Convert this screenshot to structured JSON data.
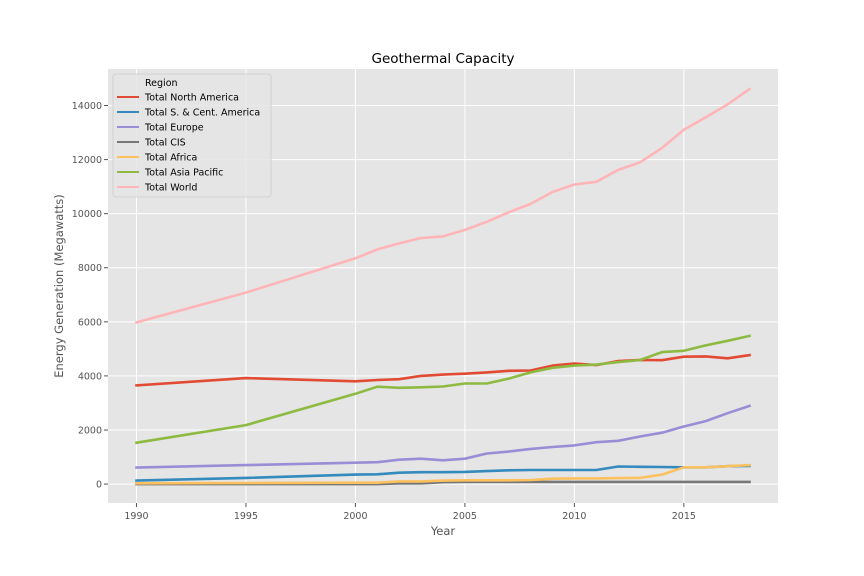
{
  "chart_data": {
    "type": "line",
    "title": "Geothermal Capacity",
    "xlabel": "Year",
    "ylabel": "Energy Generation (Megawatts)",
    "xlim": [
      1988.7,
      2019.3
    ],
    "ylim": [
      -700,
      15350
    ],
    "x_ticks": [
      1990,
      1995,
      2000,
      2005,
      2010,
      2015
    ],
    "y_ticks": [
      0,
      2000,
      4000,
      6000,
      8000,
      10000,
      12000,
      14000
    ],
    "grid": true,
    "legend": {
      "title": "Region",
      "placement": "top-left"
    },
    "x": [
      1990,
      1995,
      2000,
      2001,
      2002,
      2003,
      2004,
      2005,
      2006,
      2007,
      2008,
      2009,
      2010,
      2011,
      2012,
      2013,
      2014,
      2015,
      2016,
      2017,
      2018
    ],
    "series": [
      {
        "name": "Total North America",
        "color": "#E24A33",
        "values": [
          3650,
          3920,
          3800,
          3850,
          3880,
          4000,
          4050,
          4080,
          4130,
          4190,
          4200,
          4380,
          4460,
          4400,
          4550,
          4590,
          4580,
          4710,
          4720,
          4650,
          4770
        ]
      },
      {
        "name": "Total S. & Cent. America",
        "color": "#348ABD",
        "values": [
          130,
          230,
          350,
          360,
          420,
          440,
          440,
          450,
          480,
          510,
          520,
          520,
          520,
          520,
          650,
          640,
          630,
          620,
          620,
          660,
          670
        ]
      },
      {
        "name": "Total Europe",
        "color": "#988ED5",
        "values": [
          610,
          700,
          790,
          810,
          900,
          940,
          880,
          940,
          1130,
          1200,
          1300,
          1370,
          1430,
          1550,
          1600,
          1760,
          1900,
          2130,
          2330,
          2620,
          2890
        ]
      },
      {
        "name": "Total CIS",
        "color": "#777777",
        "values": [
          0,
          0,
          0,
          0,
          30,
          30,
          70,
          80,
          80,
          80,
          80,
          80,
          80,
          80,
          80,
          80,
          80,
          80,
          80,
          80,
          80
        ]
      },
      {
        "name": "Total Africa",
        "color": "#FBC15E",
        "values": [
          30,
          40,
          50,
          50,
          100,
          100,
          130,
          140,
          140,
          140,
          150,
          200,
          210,
          210,
          220,
          230,
          350,
          620,
          620,
          660,
          700
        ]
      },
      {
        "name": "Total Asia Pacific",
        "color": "#8EBA42",
        "values": [
          1530,
          2180,
          3340,
          3600,
          3560,
          3580,
          3610,
          3720,
          3720,
          3900,
          4130,
          4300,
          4380,
          4420,
          4510,
          4590,
          4880,
          4930,
          5130,
          5300,
          5480
        ]
      },
      {
        "name": "Total World",
        "color": "#FFB5B8",
        "values": [
          5980,
          7080,
          8350,
          8680,
          8900,
          9100,
          9160,
          9400,
          9700,
          10050,
          10360,
          10800,
          11080,
          11180,
          11620,
          11900,
          12430,
          13100,
          13560,
          14040,
          14610
        ]
      }
    ]
  }
}
